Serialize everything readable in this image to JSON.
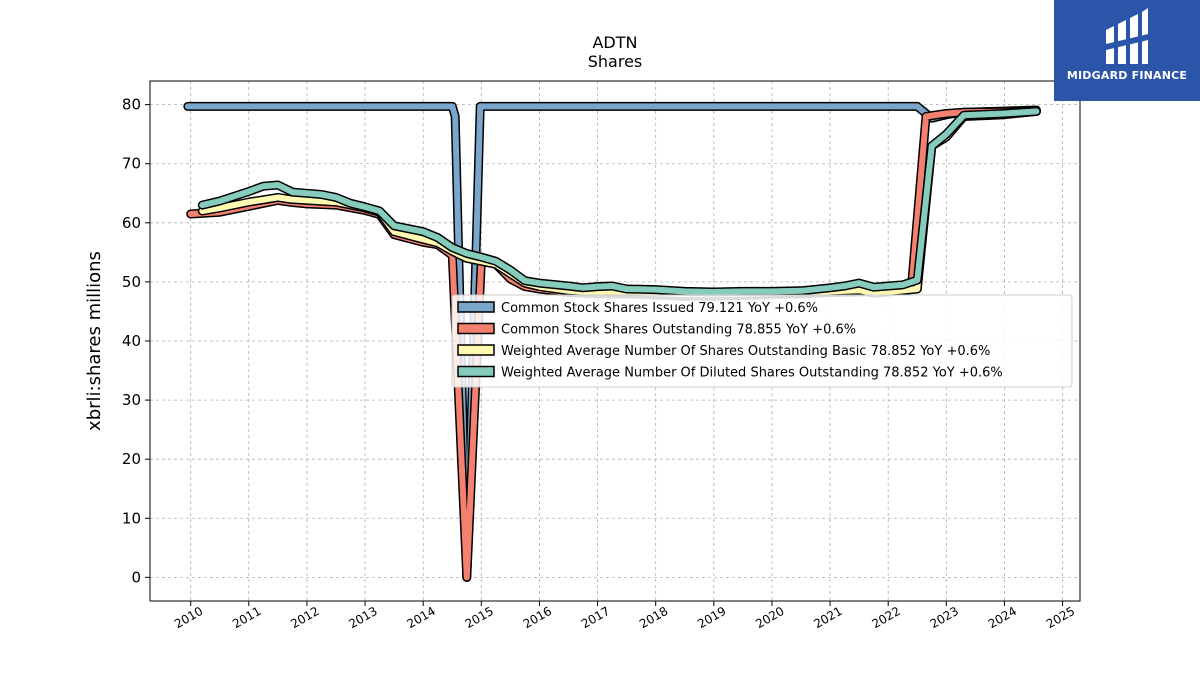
{
  "chart_data": {
    "type": "line",
    "title": "ADTN",
    "subtitle": "Shares",
    "xlabel": "",
    "ylabel": "xbrli:shares millions",
    "xlim": [
      2009.3,
      2025.3
    ],
    "ylim": [
      -4,
      84
    ],
    "x_ticks": [
      "2010",
      "2011",
      "2012",
      "2013",
      "2014",
      "2015",
      "2016",
      "2017",
      "2018",
      "2019",
      "2020",
      "2021",
      "2022",
      "2023",
      "2024",
      "2025"
    ],
    "y_ticks": [
      "0",
      "10",
      "20",
      "30",
      "40",
      "50",
      "60",
      "70",
      "80"
    ],
    "grid": true,
    "legend_position": "center-right",
    "series": [
      {
        "name": "Common Stock Shares Issued  79.121 YoY +0.6%",
        "color": "#7ba6cb",
        "x": [
          2009.95,
          2014.5,
          2014.55,
          2014.75,
          2014.98,
          2022.5,
          2022.75,
          2023.0,
          2023.3,
          2024.0,
          2024.55
        ],
        "y": [
          79.7,
          79.7,
          78,
          0,
          79.7,
          79.7,
          77.7,
          78.3,
          78.7,
          78.9,
          79.1
        ]
      },
      {
        "name": "Common Stock Shares Outstanding  78.855 YoY +0.6%",
        "color": "#f4806f",
        "x": [
          2010.0,
          2010.5,
          2011.0,
          2011.5,
          2011.7,
          2012.0,
          2012.5,
          2013.0,
          2013.25,
          2013.5,
          2014.0,
          2014.25,
          2014.5,
          2014.75,
          2015.0,
          2015.25,
          2015.5,
          2015.75,
          2016.0,
          2016.5,
          2017.0,
          2017.5,
          2018.0,
          2018.5,
          2019.0,
          2019.5,
          2020.0,
          2020.5,
          2021.0,
          2021.5,
          2022.0,
          2022.4,
          2022.65,
          2023.0,
          2023.3,
          2024.0,
          2024.55
        ],
        "y": [
          61.5,
          61.8,
          62.8,
          63.8,
          63.5,
          63.2,
          63.0,
          62.1,
          61.4,
          58.0,
          56.7,
          56.3,
          54.5,
          0,
          53.5,
          53.0,
          50.5,
          49.2,
          48.8,
          48.2,
          48.0,
          48.0,
          47.8,
          47.6,
          47.6,
          47.7,
          47.9,
          48.0,
          48.2,
          48.3,
          48.7,
          49.0,
          78.0,
          78.5,
          78.7,
          78.8,
          78.9
        ]
      },
      {
        "name": "Weighted Average Number Of Shares Outstanding Basic  78.852 YoY +0.6%",
        "color": "#fff9b2",
        "x": [
          2010.2,
          2010.5,
          2011.0,
          2011.5,
          2011.7,
          2012.0,
          2012.5,
          2013.0,
          2013.25,
          2013.5,
          2014.0,
          2014.25,
          2014.5,
          2014.75,
          2015.25,
          2015.75,
          2016.0,
          2016.5,
          2017.0,
          2017.5,
          2018.0,
          2018.5,
          2019.0,
          2019.5,
          2020.0,
          2020.5,
          2021.0,
          2021.5,
          2021.75,
          2022.0,
          2022.5,
          2022.75,
          2023.0,
          2023.3,
          2024.0,
          2024.55
        ],
        "y": [
          62.0,
          62.5,
          63.5,
          64.3,
          64.0,
          63.8,
          63.5,
          62.5,
          61.8,
          58.5,
          57.2,
          56.6,
          55.2,
          54.0,
          53.0,
          49.8,
          49.2,
          48.5,
          48.2,
          48.3,
          48.1,
          47.9,
          47.9,
          48.0,
          48.1,
          48.2,
          48.4,
          48.6,
          48.1,
          48.3,
          48.8,
          73.0,
          74.5,
          78.0,
          78.3,
          78.85
        ]
      },
      {
        "name": "Weighted Average Number Of Diluted Shares Outstanding  78.852 YoY +0.6%",
        "color": "#86ccbc",
        "x": [
          2010.2,
          2010.5,
          2011.0,
          2011.25,
          2011.5,
          2011.75,
          2012.0,
          2012.25,
          2012.5,
          2012.75,
          2013.0,
          2013.25,
          2013.5,
          2014.0,
          2014.25,
          2014.5,
          2014.75,
          2015.0,
          2015.25,
          2015.5,
          2015.75,
          2016.0,
          2016.5,
          2016.75,
          2017.0,
          2017.25,
          2017.5,
          2018.0,
          2018.5,
          2019.0,
          2019.5,
          2020.0,
          2020.5,
          2021.0,
          2021.25,
          2021.5,
          2021.75,
          2022.0,
          2022.25,
          2022.5,
          2022.75,
          2023.0,
          2023.3,
          2024.0,
          2024.55
        ],
        "y": [
          63.0,
          63.7,
          65.3,
          66.2,
          66.4,
          65.2,
          65.0,
          64.8,
          64.3,
          63.3,
          62.7,
          62.0,
          59.5,
          58.5,
          57.5,
          55.8,
          54.8,
          54.2,
          53.5,
          52.0,
          50.2,
          49.8,
          49.3,
          49.0,
          49.2,
          49.3,
          48.8,
          48.7,
          48.4,
          48.3,
          48.4,
          48.4,
          48.5,
          49.0,
          49.3,
          49.8,
          49.1,
          49.3,
          49.5,
          50.3,
          73.0,
          75.0,
          78.2,
          78.5,
          78.85
        ]
      }
    ]
  },
  "logo": {
    "text": "MIDGARD FINANCE",
    "icon": "midgard-finance-logo-icon"
  }
}
